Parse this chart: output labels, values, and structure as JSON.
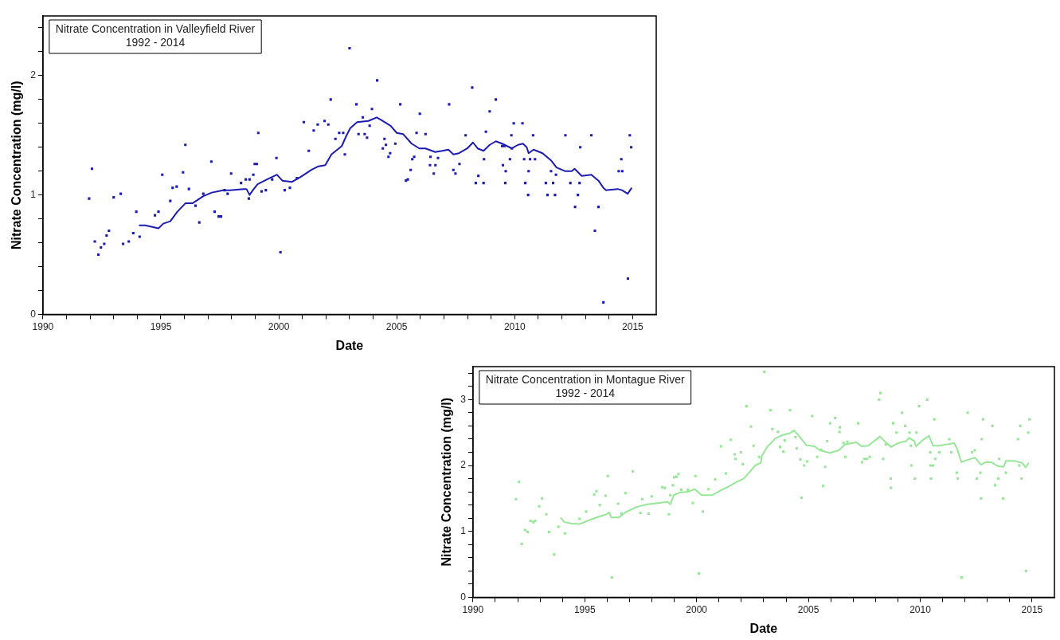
{
  "chart_data": [
    {
      "type": "scatter",
      "title": "Nitrate Concentration in Valleyfield River",
      "subtitle": "1992 - 2014",
      "xlabel": "Date",
      "ylabel": "Nitrate Concentration (mg/l)",
      "xlim": [
        1990,
        2016
      ],
      "ylim": [
        0,
        2.5
      ],
      "xticks": [
        1990,
        {
          "value": 1991,
          "label": null
        },
        {
          "value": 1992,
          "label": null
        },
        {
          "value": 1993,
          "label": null
        },
        {
          "value": 1994,
          "label": null
        },
        1995,
        {
          "value": 1996,
          "label": null
        },
        {
          "value": 1997,
          "label": null
        },
        {
          "value": 1998,
          "label": null
        },
        {
          "value": 1999,
          "label": null
        },
        2000,
        {
          "value": 2001,
          "label": null
        },
        {
          "value": 2002,
          "label": null
        },
        {
          "value": 2003,
          "label": null
        },
        {
          "value": 2004,
          "label": null
        },
        2005,
        {
          "value": 2006,
          "label": null
        },
        {
          "value": 2007,
          "label": null
        },
        {
          "value": 2008,
          "label": null
        },
        {
          "value": 2009,
          "label": null
        },
        2010,
        {
          "value": 2011,
          "label": null
        },
        {
          "value": 2012,
          "label": null
        },
        {
          "value": 2013,
          "label": null
        },
        {
          "value": 2014,
          "label": null
        },
        2015
      ],
      "yticks": [
        0,
        {
          "value": 0.2,
          "label": null
        },
        {
          "value": 0.4,
          "label": null
        },
        {
          "value": 0.6,
          "label": null
        },
        {
          "value": 0.8,
          "label": null
        },
        1,
        {
          "value": 1.2,
          "label": null
        },
        {
          "value": 1.4,
          "label": null
        },
        {
          "value": 1.6,
          "label": null
        },
        {
          "value": 1.8,
          "label": null
        },
        2,
        {
          "value": 2.2,
          "label": null
        },
        {
          "value": 2.4,
          "label": null
        }
      ],
      "grid": false,
      "marker": "square",
      "series": [
        {
          "type": "scatter",
          "color": "#1c1cb0",
          "x": [
            1991.96,
            1992.08,
            1992.2,
            1992.35,
            1992.46,
            1992.6,
            1992.7,
            1992.8,
            1993.0,
            1993.3,
            1993.4,
            1993.64,
            1993.83,
            1993.96,
            1994.1,
            1994.75,
            1994.9,
            1995.06,
            1995.4,
            1995.5,
            1995.67,
            1995.94,
            1996.04,
            1996.19,
            1996.47,
            1996.63,
            1996.8,
            1997.14,
            1997.28,
            1997.45,
            1997.55,
            1997.7,
            1997.83,
            1997.98,
            1998.4,
            1998.6,
            1998.76,
            1998.73,
            1998.92,
            1998.98,
            1999.07,
            1999.13,
            1999.27,
            1999.45,
            1999.72,
            1999.9,
            2000.07,
            2000.25,
            2000.47,
            2000.77,
            2001.06,
            2001.27,
            2001.48,
            2001.65,
            2001.94,
            2002.1,
            2002.2,
            2002.4,
            2002.56,
            2002.73,
            2002.8,
            2003.0,
            2003.29,
            2003.38,
            2003.56,
            2003.64,
            2003.74,
            2003.85,
            2003.95,
            2004.17,
            2004.41,
            2004.48,
            2004.54,
            2004.65,
            2004.72,
            2004.94,
            2005.15,
            2005.39,
            2005.47,
            2005.59,
            2005.66,
            2005.74,
            2005.84,
            2005.98,
            2006.22,
            2006.41,
            2006.43,
            2006.57,
            2006.64,
            2006.75,
            2007.22,
            2007.4,
            2007.49,
            2007.66,
            2007.92,
            2008.2,
            2008.35,
            2008.46,
            2008.68,
            2008.7,
            2008.78,
            2008.94,
            2009.2,
            2009.47,
            2009.56,
            2009.5,
            2009.6,
            2009.62,
            2009.8,
            2009.86,
            2009.88,
            2009.96,
            2010.33,
            2010.4,
            2010.45,
            2010.59,
            2010.57,
            2010.65,
            2010.86,
            2010.78,
            2011.32,
            2011.39,
            2011.54,
            2011.63,
            2011.71,
            2011.75,
            2012.15,
            2012.36,
            2012.56,
            2012.68,
            2012.75,
            2012.78,
            2013.25,
            2013.4,
            2013.55,
            2013.76,
            2014.41,
            2014.52,
            2014.56,
            2014.8,
            2014.88,
            2014.94
          ],
          "values": [
            0.97,
            1.22,
            0.61,
            0.5,
            0.56,
            0.59,
            0.66,
            0.7,
            0.98,
            1.01,
            0.59,
            0.61,
            0.68,
            0.86,
            0.65,
            0.83,
            0.86,
            1.17,
            0.95,
            1.06,
            1.07,
            1.19,
            1.42,
            1.05,
            0.91,
            0.77,
            1.01,
            1.28,
            0.86,
            0.82,
            0.82,
            1.04,
            1.01,
            1.18,
            1.1,
            1.13,
            1.13,
            0.97,
            1.17,
            1.26,
            1.26,
            1.52,
            1.03,
            1.04,
            1.13,
            1.31,
            0.52,
            1.04,
            1.06,
            1.14,
            1.61,
            1.37,
            1.54,
            1.59,
            1.62,
            1.59,
            1.8,
            1.47,
            1.52,
            1.52,
            1.34,
            2.23,
            1.76,
            1.51,
            1.65,
            1.51,
            1.48,
            1.58,
            1.72,
            1.96,
            1.39,
            1.47,
            1.42,
            1.32,
            1.35,
            1.43,
            1.76,
            1.12,
            1.13,
            1.21,
            1.3,
            1.32,
            1.52,
            1.68,
            1.51,
            1.25,
            1.32,
            1.18,
            1.25,
            1.31,
            1.76,
            1.21,
            1.18,
            1.26,
            1.5,
            1.9,
            1.1,
            1.16,
            1.1,
            1.3,
            1.53,
            1.7,
            1.8,
            1.41,
            1.41,
            1.25,
            1.1,
            1.2,
            1.3,
            1.5,
            1.39,
            1.6,
            1.6,
            1.3,
            1.1,
            1.2,
            1.0,
            1.3,
            1.3,
            1.5,
            1.1,
            1.0,
            1.2,
            1.1,
            1.0,
            1.17,
            1.5,
            1.1,
            0.9,
            1.0,
            1.1,
            1.4,
            1.5,
            0.7,
            0.9,
            0.1,
            1.2,
            1.3,
            1.2,
            0.3,
            1.5,
            1.4
          ]
        },
        {
          "type": "line",
          "marker": "none",
          "line_style": "solid",
          "color": "#1c1cb0",
          "x": [
            1994.07,
            1994.34,
            1994.9,
            1995.1,
            1995.4,
            1995.7,
            1996.04,
            1996.34,
            1996.57,
            1996.8,
            1997.16,
            1997.63,
            1997.92,
            1998.51,
            1998.63,
            1998.76,
            1998.9,
            1999.1,
            1999.5,
            1999.92,
            2000.15,
            2000.56,
            2000.92,
            2001.38,
            2001.68,
            2001.97,
            2002.23,
            2002.67,
            2002.85,
            2003.03,
            2003.32,
            2003.8,
            2004.15,
            2004.33,
            2004.74,
            2005.0,
            2005.27,
            2005.63,
            2005.96,
            2006.22,
            2006.63,
            2006.93,
            2007.19,
            2007.4,
            2007.64,
            2007.99,
            2008.23,
            2008.43,
            2008.68,
            2008.94,
            2009.2,
            2009.47,
            2009.88,
            2010.14,
            2010.35,
            2010.51,
            2010.59,
            2010.8,
            2011.18,
            2011.54,
            2011.77,
            2012.13,
            2012.42,
            2012.54,
            2012.84,
            2013.25,
            2013.55,
            2013.76,
            2013.88,
            2014.37,
            2014.55,
            2014.79,
            2014.96
          ],
          "values": [
            0.745,
            0.745,
            0.72,
            0.76,
            0.78,
            0.86,
            0.93,
            0.93,
            0.96,
            0.99,
            1.02,
            1.04,
            1.04,
            1.05,
            1.05,
            1.0,
            1.04,
            1.09,
            1.13,
            1.17,
            1.12,
            1.11,
            1.15,
            1.21,
            1.24,
            1.25,
            1.34,
            1.41,
            1.49,
            1.56,
            1.61,
            1.62,
            1.65,
            1.63,
            1.58,
            1.52,
            1.51,
            1.43,
            1.39,
            1.39,
            1.36,
            1.37,
            1.38,
            1.34,
            1.35,
            1.39,
            1.44,
            1.39,
            1.37,
            1.42,
            1.45,
            1.43,
            1.39,
            1.42,
            1.43,
            1.4,
            1.35,
            1.38,
            1.35,
            1.29,
            1.23,
            1.2,
            1.2,
            1.22,
            1.16,
            1.17,
            1.12,
            1.06,
            1.04,
            1.05,
            1.04,
            1.01,
            1.06
          ]
        }
      ]
    },
    {
      "type": "scatter",
      "title": "Nitrate Concentration in Montague River",
      "subtitle": "1992 - 2014",
      "xlabel": "Date",
      "ylabel": "Nitrate Concentration (mg/l)",
      "xlim": [
        1990,
        2016
      ],
      "ylim": [
        0,
        3.5
      ],
      "xticks": [
        1990,
        {
          "value": 1991,
          "label": null
        },
        {
          "value": 1992,
          "label": null
        },
        {
          "value": 1993,
          "label": null
        },
        {
          "value": 1994,
          "label": null
        },
        1995,
        {
          "value": 1996,
          "label": null
        },
        {
          "value": 1997,
          "label": null
        },
        {
          "value": 1998,
          "label": null
        },
        {
          "value": 1999,
          "label": null
        },
        2000,
        {
          "value": 2001,
          "label": null
        },
        {
          "value": 2002,
          "label": null
        },
        {
          "value": 2003,
          "label": null
        },
        {
          "value": 2004,
          "label": null
        },
        2005,
        {
          "value": 2006,
          "label": null
        },
        {
          "value": 2007,
          "label": null
        },
        {
          "value": 2008,
          "label": null
        },
        {
          "value": 2009,
          "label": null
        },
        2010,
        {
          "value": 2011,
          "label": null
        },
        {
          "value": 2012,
          "label": null
        },
        {
          "value": 2013,
          "label": null
        },
        {
          "value": 2014,
          "label": null
        },
        2015
      ],
      "yticks": [
        0,
        {
          "value": 0.2,
          "label": null
        },
        {
          "value": 0.4,
          "label": null
        },
        {
          "value": 0.6,
          "label": null
        },
        {
          "value": 0.8,
          "label": null
        },
        1,
        {
          "value": 1.2,
          "label": null
        },
        {
          "value": 1.4,
          "label": null
        },
        {
          "value": 1.6,
          "label": null
        },
        {
          "value": 1.8,
          "label": null
        },
        2,
        {
          "value": 2.2,
          "label": null
        },
        {
          "value": 2.4,
          "label": null
        },
        {
          "value": 2.6,
          "label": null
        },
        {
          "value": 2.8,
          "label": null
        },
        3,
        {
          "value": 3.2,
          "label": null
        },
        {
          "value": 3.4,
          "label": null
        }
      ],
      "grid": false,
      "marker": "square",
      "series": [
        {
          "type": "scatter",
          "color": "#98e698",
          "x": [
            1991.93,
            1992.06,
            1992.18,
            1992.33,
            1992.45,
            1992.57,
            1992.69,
            1992.78,
            1992.96,
            1993.09,
            1993.28,
            1993.4,
            1993.63,
            1993.82,
            1994.11,
            1994.76,
            1995.06,
            1995.42,
            1995.52,
            1995.67,
            1995.93,
            1996.03,
            1996.21,
            1996.49,
            1996.64,
            1996.82,
            1997.15,
            1997.49,
            1997.57,
            1997.85,
            1997.99,
            1998.46,
            1998.58,
            1998.76,
            1998.82,
            1998.94,
            1999.0,
            1999.1,
            1999.19,
            1999.31,
            1999.61,
            1999.83,
            1999.95,
            2000.1,
            2000.28,
            2000.53,
            2000.83,
            2001.09,
            2001.31,
            2001.53,
            2001.7,
            2001.74,
            2001.98,
            2002.07,
            2002.23,
            2002.43,
            2002.55,
            2002.79,
            2003.03,
            2003.3,
            2003.39,
            2003.64,
            2003.73,
            2003.88,
            2003.94,
            2004.18,
            2004.42,
            2004.48,
            2004.64,
            2004.69,
            2004.81,
            2004.94,
            2005.17,
            2005.39,
            2005.57,
            2005.66,
            2005.75,
            2005.84,
            2005.97,
            2006.19,
            2006.39,
            2006.41,
            2006.57,
            2006.65,
            2006.74,
            2007.22,
            2007.4,
            2007.5,
            2007.62,
            2007.74,
            2008.16,
            2008.22,
            2008.34,
            2008.46,
            2008.68,
            2008.69,
            2008.79,
            2008.94,
            2009.19,
            2009.33,
            2009.52,
            2009.58,
            2009.61,
            2009.76,
            2009.83,
            2009.95,
            2010.31,
            2010.45,
            2010.46,
            2010.48,
            2010.57,
            2010.63,
            2010.67,
            2010.85,
            2011.3,
            2011.39,
            2011.63,
            2011.68,
            2011.85,
            2012.12,
            2012.32,
            2012.44,
            2012.53,
            2012.69,
            2012.72,
            2012.75,
            2012.81,
            2013.23,
            2013.35,
            2013.49,
            2013.53,
            2013.71,
            2013.83,
            2014.37,
            2014.47,
            2014.43,
            2014.53,
            2014.73,
            2014.83,
            2014.89
          ],
          "values": [
            1.49,
            1.75,
            0.81,
            1.02,
            0.99,
            1.16,
            1.14,
            1.16,
            1.38,
            1.5,
            1.26,
            0.99,
            0.65,
            1.07,
            0.97,
            1.19,
            1.3,
            1.56,
            1.61,
            1.4,
            1.54,
            1.84,
            0.3,
            1.42,
            1.27,
            1.58,
            1.91,
            1.28,
            1.49,
            1.27,
            1.53,
            1.67,
            1.66,
            1.26,
            1.55,
            1.7,
            1.82,
            1.83,
            1.87,
            1.63,
            1.63,
            1.43,
            1.84,
            0.36,
            1.3,
            1.64,
            1.79,
            2.29,
            1.88,
            2.39,
            2.17,
            2.1,
            2.2,
            2.02,
            2.9,
            2.59,
            2.3,
            2.13,
            3.42,
            2.84,
            2.55,
            2.51,
            2.28,
            2.21,
            2.38,
            2.84,
            2.43,
            2.26,
            2.09,
            1.51,
            2.0,
            2.06,
            2.75,
            2.13,
            2.24,
            1.69,
            1.98,
            2.37,
            2.64,
            2.72,
            2.51,
            2.58,
            2.34,
            2.13,
            2.36,
            2.64,
            2.05,
            2.1,
            2.1,
            2.13,
            3.0,
            3.1,
            2.1,
            2.32,
            1.8,
            1.66,
            2.64,
            2.5,
            2.8,
            2.6,
            2.5,
            2.3,
            2.0,
            1.8,
            2.5,
            2.9,
            3.0,
            2.2,
            2.0,
            1.8,
            2.0,
            2.7,
            2.1,
            2.2,
            2.4,
            2.2,
            1.89,
            1.8,
            0.3,
            2.8,
            2.2,
            2.23,
            1.8,
            1.89,
            1.5,
            2.4,
            2.7,
            2.6,
            1.7,
            1.8,
            2.1,
            1.5,
            1.89,
            2.4,
            2.6,
            2.0,
            1.8,
            0.4,
            2.5,
            2.7
          ]
        },
        {
          "type": "line",
          "marker": "none",
          "line_style": "solid",
          "color": "#98e698",
          "x": [
            1993.91,
            1994.09,
            1994.39,
            1994.76,
            1995.12,
            1995.6,
            1995.97,
            1996.09,
            1996.19,
            1996.52,
            1996.82,
            1997.31,
            1997.79,
            1998.28,
            1998.7,
            1998.82,
            1998.98,
            1999.25,
            1999.61,
            1999.92,
            2000.22,
            2000.7,
            2001.07,
            2001.43,
            2001.8,
            2002.1,
            2002.37,
            2002.61,
            2002.87,
            2002.91,
            2003.15,
            2003.52,
            2003.82,
            2004.18,
            2004.36,
            2004.6,
            2004.9,
            2005.27,
            2005.51,
            2005.97,
            2006.35,
            2006.65,
            2007.14,
            2007.38,
            2007.68,
            2008.2,
            2008.46,
            2008.7,
            2009.0,
            2009.37,
            2009.51,
            2009.73,
            2009.81,
            2010.09,
            2010.39,
            2010.57,
            2010.81,
            2011.2,
            2011.51,
            2011.63,
            2011.84,
            2012.08,
            2012.44,
            2012.72,
            2012.92,
            2013.17,
            2013.47,
            2013.73,
            2013.83,
            2014.19,
            2014.43,
            2014.55,
            2014.71,
            2014.86
          ],
          "values": [
            1.21,
            1.14,
            1.12,
            1.11,
            1.16,
            1.22,
            1.26,
            1.29,
            1.21,
            1.21,
            1.29,
            1.37,
            1.41,
            1.43,
            1.45,
            1.41,
            1.55,
            1.59,
            1.6,
            1.64,
            1.55,
            1.55,
            1.62,
            1.68,
            1.75,
            1.8,
            1.9,
            2.0,
            2.04,
            2.14,
            2.28,
            2.41,
            2.46,
            2.49,
            2.53,
            2.44,
            2.31,
            2.29,
            2.23,
            2.19,
            2.23,
            2.32,
            2.35,
            2.29,
            2.3,
            2.44,
            2.35,
            2.28,
            2.34,
            2.37,
            2.42,
            2.37,
            2.29,
            2.38,
            2.45,
            2.3,
            2.3,
            2.32,
            2.34,
            2.27,
            2.05,
            2.08,
            2.12,
            2.01,
            2.05,
            2.05,
            1.99,
            1.98,
            2.07,
            2.07,
            2.05,
            2.04,
            1.97,
            2.04
          ]
        }
      ]
    }
  ]
}
